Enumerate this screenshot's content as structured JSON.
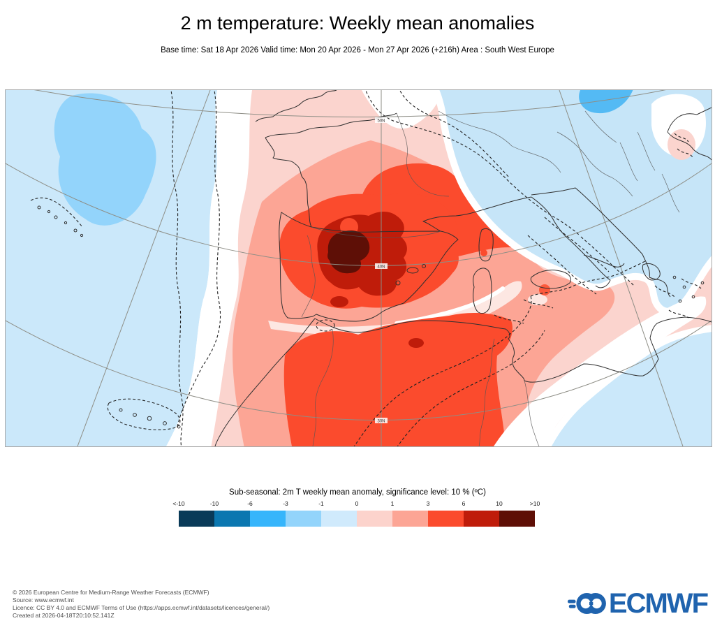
{
  "header": {
    "title": "2 m temperature: Weekly mean anomalies",
    "subtitle": "Base time: Sat 18 Apr 2026 Valid time: Mon 20 Apr 2026 - Mon 27 Apr 2026 (+216h) Area : South West Europe"
  },
  "map": {
    "graticule_labels": [
      "50N",
      "40N",
      "30N"
    ]
  },
  "legend": {
    "title": "Sub-seasonal: 2m T weekly mean anomaly, significance level: 10 % (ºC)",
    "ticks": [
      "<-10",
      "-10",
      "-6",
      "-3",
      "-1",
      "0",
      "1",
      "3",
      "6",
      "10",
      ">10"
    ],
    "colors": [
      "#093a58",
      "#0b77b0",
      "#36b5fb",
      "#93d4fb",
      "#d0eafc",
      "#fcd3cc",
      "#fca595",
      "#fb4b2d",
      "#bf1c0a",
      "#5e0f06"
    ]
  },
  "footer": {
    "lines": [
      "© 2026 European Centre for Medium-Range Weather Forecasts (ECMWF)",
      "Source: www.ecmwf.int",
      "Licence: CC BY 4.0 and ECMWF Terms of Use (https://apps.ecmwf.int/datasets/licences/general/)",
      "Created at 2026-04-18T20:10:52.141Z"
    ],
    "logo_text": "ECMWF",
    "logo_color": "#1f63ae"
  }
}
